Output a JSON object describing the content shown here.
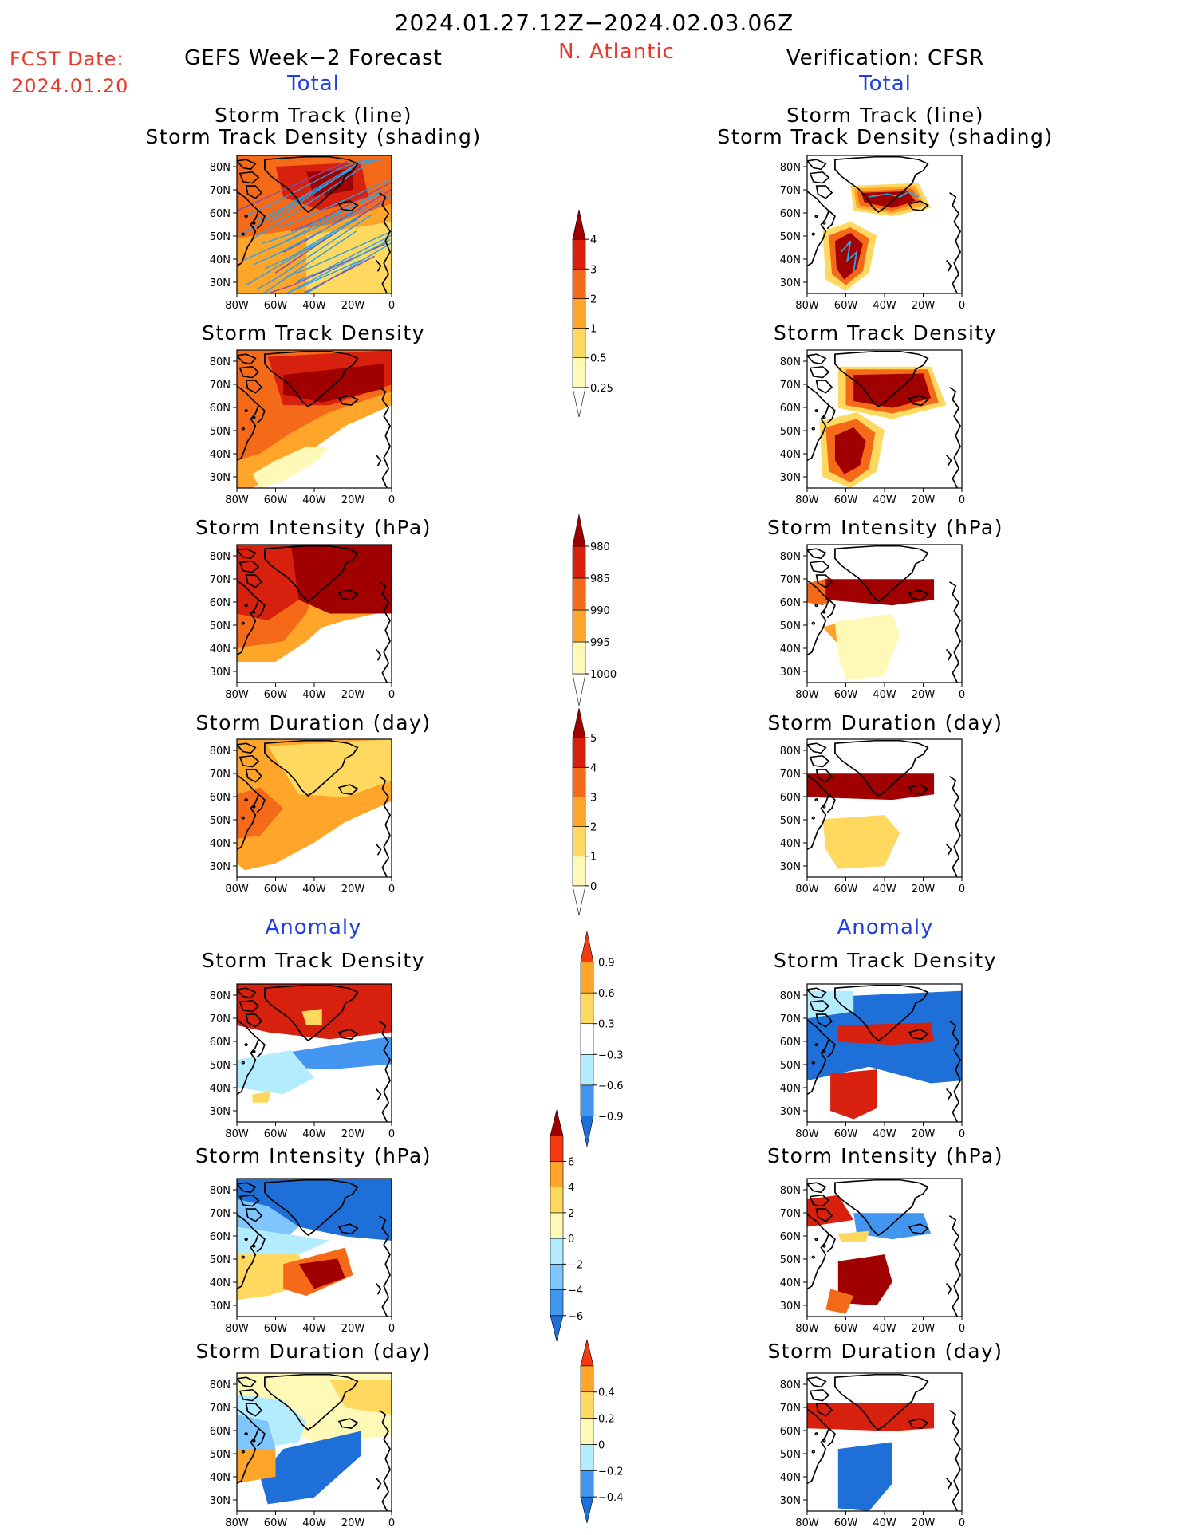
{
  "header": {
    "period": "2024.01.27.12Z−2024.02.03.06Z",
    "fcst_label": "FCST Date:",
    "fcst_date": "2024.01.20",
    "left_title": "GEFS Week−2 Forecast",
    "region": "N. Atlantic",
    "right_title": "Verification: CFSR"
  },
  "sections": {
    "total": "Total",
    "anomaly": "Anomaly"
  },
  "panel_titles": {
    "track_line_1": "Storm Track (line)",
    "track_line_2": "Storm Track Density (shading)",
    "density": "Storm Track Density",
    "intensity": "Storm Intensity (hPa)",
    "duration": "Storm Duration (day)"
  },
  "axes": {
    "lat_labels": [
      "80N",
      "70N",
      "60N",
      "50N",
      "40N",
      "30N"
    ],
    "lon_labels": [
      "80W",
      "60W",
      "40W",
      "20W",
      "0"
    ]
  },
  "colors": {
    "warm": [
      "#fff9b8",
      "#ffd860",
      "#ffa52a",
      "#f56a18",
      "#d8200e",
      "#a10000"
    ],
    "cool": [
      "#b4ecff",
      "#7fc6ff",
      "#4296ef",
      "#1f6fd8"
    ],
    "track_blue": "#2aa1e8",
    "track_purple": "#8a4aa8"
  },
  "chart_data": [
    {
      "id": "colorbar-density",
      "type": "colorbar",
      "direction": "increasing",
      "levels": [
        "0.25",
        "0.5",
        "1",
        "2",
        "3",
        "4"
      ],
      "colors": [
        "#ffffff",
        "#fff9b8",
        "#ffd860",
        "#ffa52a",
        "#f56a18",
        "#d8200e",
        "#a10000"
      ]
    },
    {
      "id": "colorbar-intensity",
      "type": "colorbar",
      "direction": "decreasing",
      "levels": [
        "1000",
        "995",
        "990",
        "985",
        "980"
      ],
      "colors": [
        "#ffffff",
        "#fff9b8",
        "#ffa52a",
        "#f56a18",
        "#d8200e",
        "#a10000"
      ]
    },
    {
      "id": "colorbar-duration",
      "type": "colorbar",
      "direction": "increasing",
      "levels": [
        "0",
        "1",
        "2",
        "3",
        "4",
        "5"
      ],
      "colors": [
        "#ffffff",
        "#fff9b8",
        "#ffd860",
        "#ffa52a",
        "#f56a18",
        "#d8200e",
        "#a10000"
      ]
    },
    {
      "id": "colorbar-anom-density",
      "type": "colorbar",
      "direction": "diverging",
      "levels": [
        "−0.9",
        "−0.6",
        "−0.3",
        "0.3",
        "0.6",
        "0.9"
      ],
      "colors": [
        "#1f6fd8",
        "#4296ef",
        "#b4ecff",
        "#ffffff",
        "#ffd860",
        "#ffa52a",
        "#f53a12"
      ]
    },
    {
      "id": "colorbar-anom-intensity",
      "type": "colorbar",
      "direction": "diverging",
      "levels": [
        "−6",
        "−4",
        "−2",
        "0",
        "2",
        "4",
        "6"
      ],
      "colors": [
        "#1f6fd8",
        "#4296ef",
        "#7fc6ff",
        "#b4ecff",
        "#fff9b8",
        "#ffd860",
        "#ffa52a",
        "#f53a12",
        "#a10000"
      ]
    },
    {
      "id": "colorbar-anom-duration",
      "type": "colorbar",
      "direction": "diverging",
      "levels": [
        "−0.4",
        "−0.2",
        "0",
        "0.2",
        "0.4"
      ],
      "colors": [
        "#1f6fd8",
        "#4296ef",
        "#b4ecff",
        "#fff9b8",
        "#ffd860",
        "#ffa52a",
        "#f53a12"
      ]
    }
  ]
}
